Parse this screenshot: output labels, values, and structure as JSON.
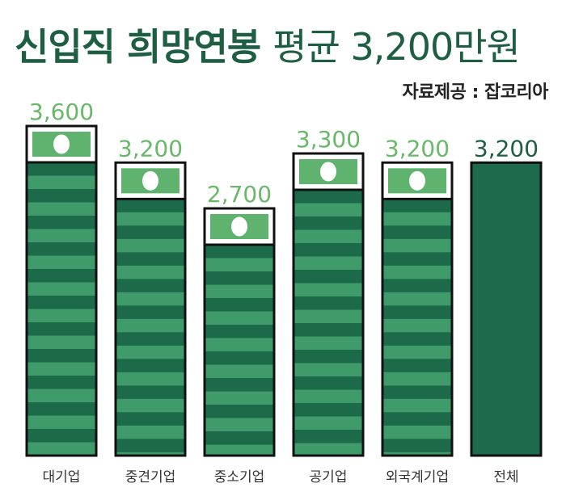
{
  "title": {
    "main": "신입직 희망연봉",
    "accent": "평균 3,200만원"
  },
  "source": "자료제공 : 잡코리아",
  "colors": {
    "title": "#1e5e43",
    "stripe_dark": "#1d6a4b",
    "stripe_light": "#3f9b6a",
    "bill": "#5fb36e",
    "value_label": "#6ab86a",
    "total_bar": "#1e6a4c",
    "total_label": "#1e5e43"
  },
  "chart_data": {
    "type": "bar",
    "title": "신입직 희망연봉 평균 3,200만원",
    "categories": [
      "대기업",
      "중견기업",
      "중소기업",
      "공기업",
      "외국계기업",
      "전체"
    ],
    "values": [
      3600,
      3200,
      2700,
      3300,
      3200,
      3200
    ],
    "value_labels": [
      "3,600",
      "3,200",
      "2,700",
      "3,300",
      "3,200",
      "3,200"
    ],
    "ylabel": "",
    "xlabel": "",
    "ylim": [
      0,
      3600
    ],
    "grid": false,
    "legend": "none"
  }
}
